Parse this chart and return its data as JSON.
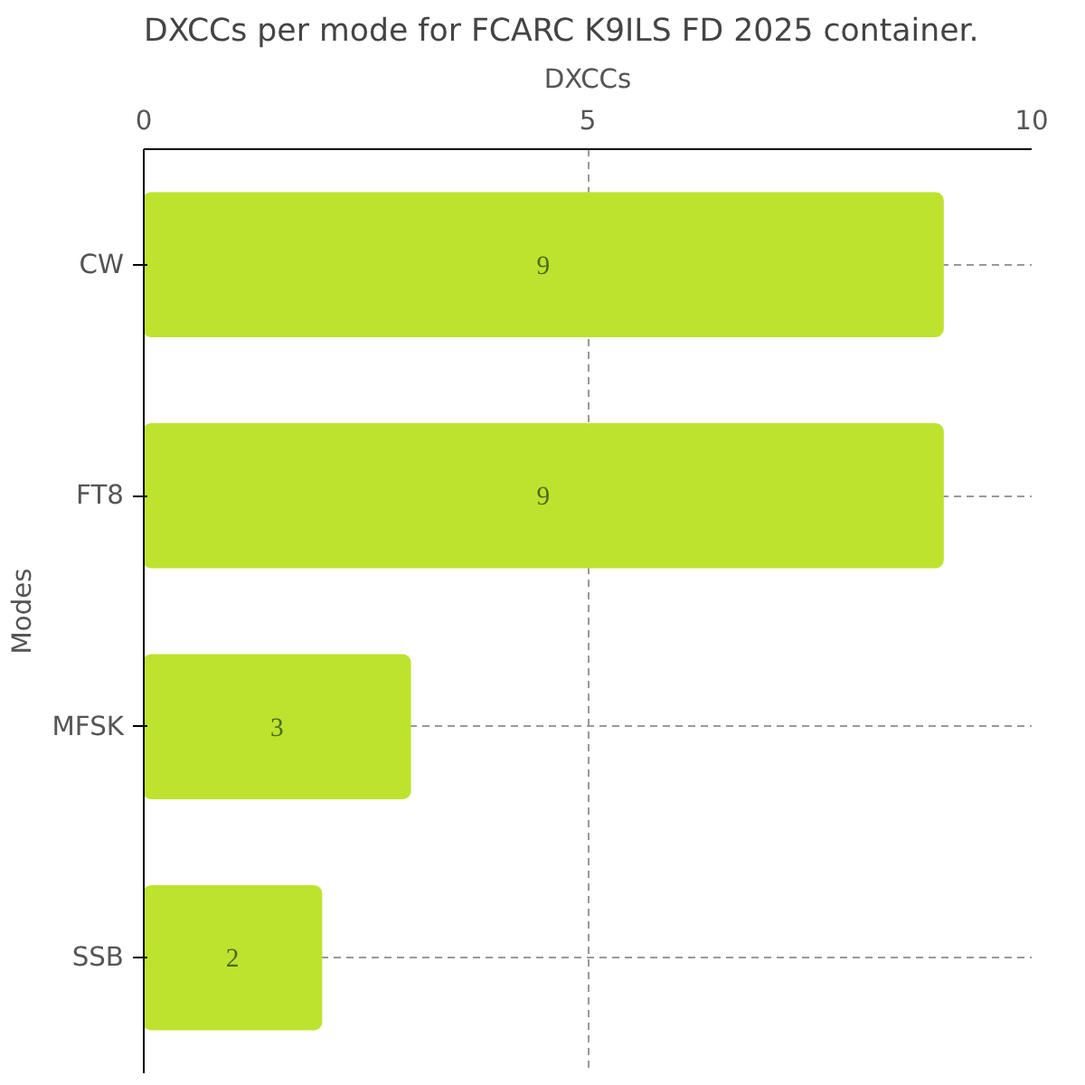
{
  "chart_data": {
    "type": "bar",
    "orientation": "horizontal",
    "title": "DXCCs per mode for FCARC K9ILS FD 2025 container.",
    "xlabel": "DXCCs",
    "ylabel": "Modes",
    "categories": [
      "CW",
      "FT8",
      "MFSK",
      "SSB"
    ],
    "values": [
      9,
      9,
      3,
      2
    ],
    "color": "#bde32f",
    "data_labels": true,
    "xlim": [
      0,
      10
    ],
    "xticks": [
      0,
      5,
      10
    ],
    "grid": true
  }
}
